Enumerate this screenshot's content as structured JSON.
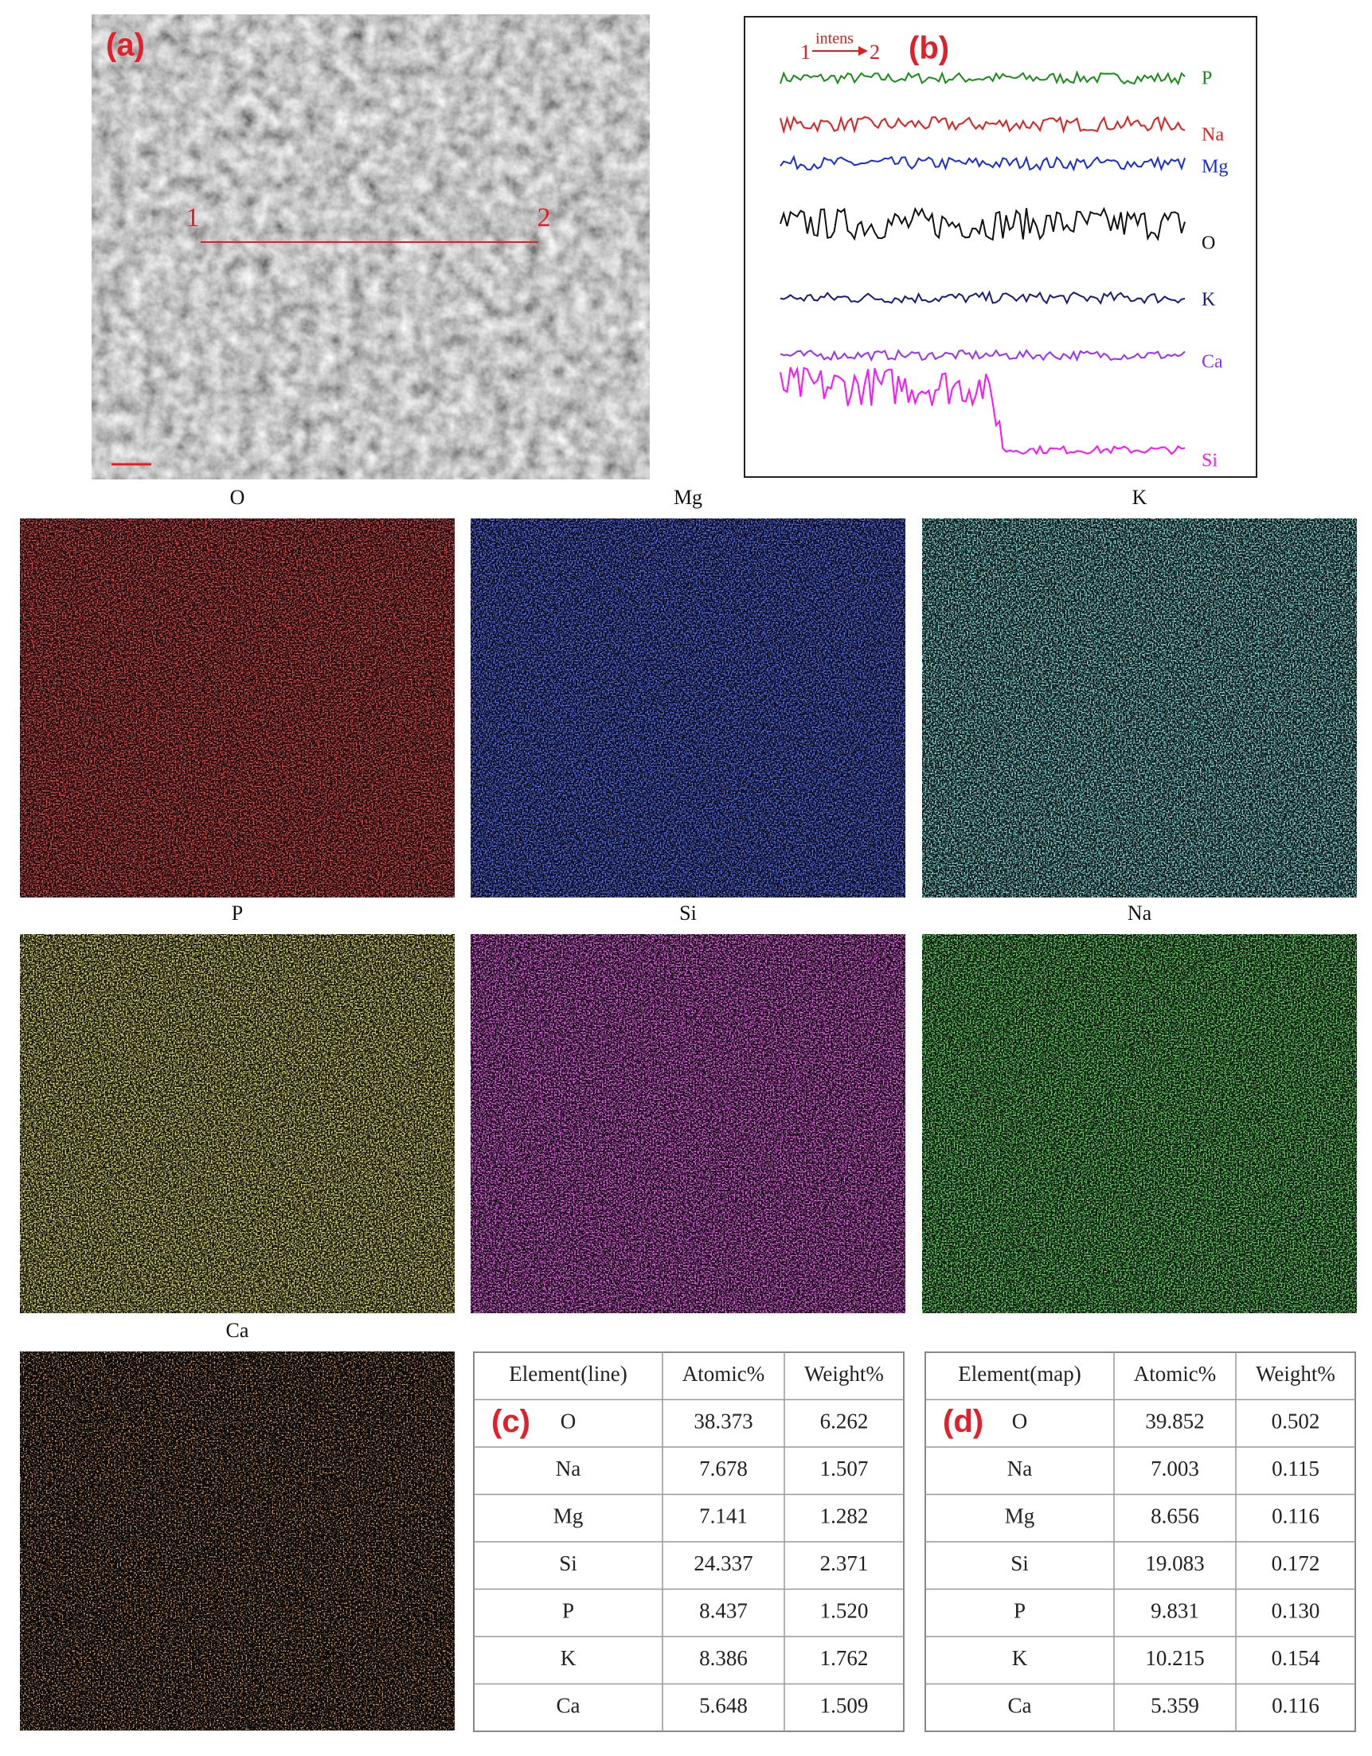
{
  "panel_a": {
    "label": "(a)",
    "markers": [
      "1",
      "2"
    ]
  },
  "panel_b": {
    "label": "(b)",
    "arrow_start": "1",
    "arrow_end": "2",
    "arrow_label": "intens",
    "traces": [
      "P",
      "Na",
      "Mg",
      "O",
      "K",
      "Ca",
      "Si"
    ]
  },
  "maps": [
    {
      "title": "O",
      "color": "#d81414"
    },
    {
      "title": "Mg",
      "color": "#1a2cff"
    },
    {
      "title": "K",
      "color": "#3cc8c8"
    },
    {
      "title": "P",
      "color": "#cfc62a"
    },
    {
      "title": "Si",
      "color": "#e824e8"
    },
    {
      "title": "Na",
      "color": "#22c422"
    },
    {
      "title": "Ca",
      "color": "#c8692a"
    }
  ],
  "table_c": {
    "label": "(c)",
    "header": [
      "Element(line)",
      "Atomic%",
      "Weight%"
    ],
    "rows": [
      [
        "O",
        "38.373",
        "6.262"
      ],
      [
        "Na",
        "7.678",
        "1.507"
      ],
      [
        "Mg",
        "7.141",
        "1.282"
      ],
      [
        "Si",
        "24.337",
        "2.371"
      ],
      [
        "P",
        "8.437",
        "1.520"
      ],
      [
        "K",
        "8.386",
        "1.762"
      ],
      [
        "Ca",
        "5.648",
        "1.509"
      ]
    ]
  },
  "table_d": {
    "label": "(d)",
    "header": [
      "Element(map)",
      "Atomic%",
      "Weight%"
    ],
    "rows": [
      [
        "O",
        "39.852",
        "0.502"
      ],
      [
        "Na",
        "7.003",
        "0.115"
      ],
      [
        "Mg",
        "8.656",
        "0.116"
      ],
      [
        "Si",
        "19.083",
        "0.172"
      ],
      [
        "P",
        "9.831",
        "0.130"
      ],
      [
        "K",
        "10.215",
        "0.154"
      ],
      [
        "Ca",
        "5.359",
        "0.116"
      ]
    ]
  }
}
